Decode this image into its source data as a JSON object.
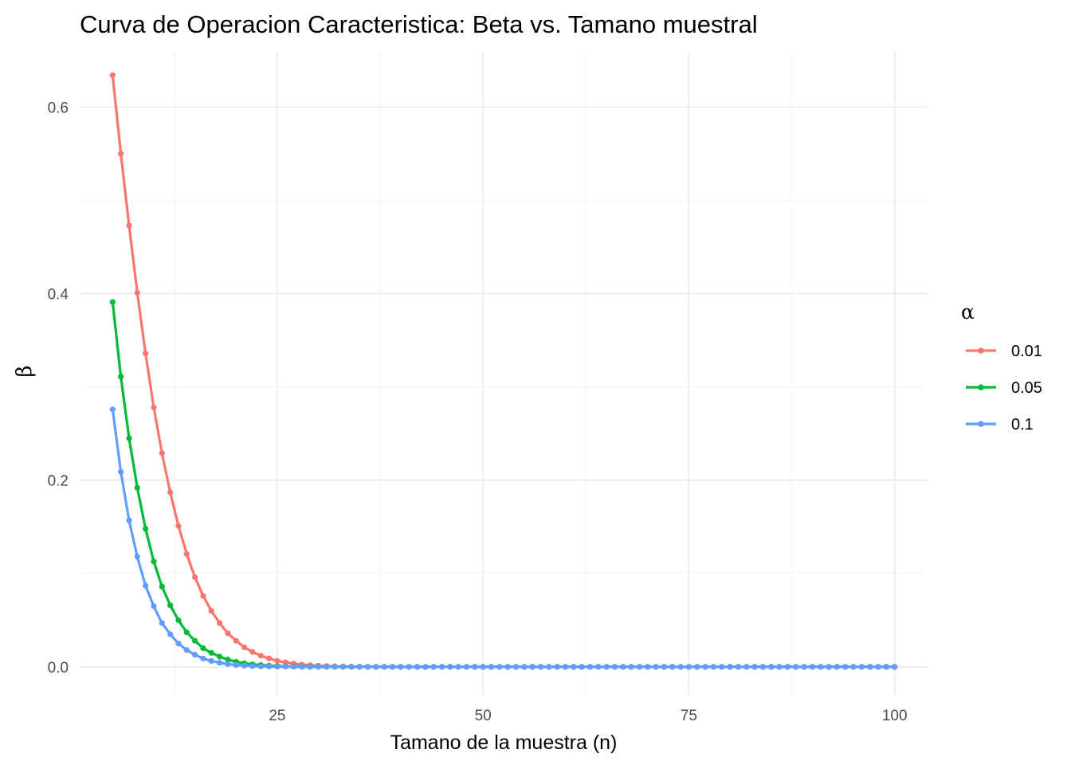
{
  "chart_data": {
    "type": "line",
    "title": "Curva de Operacion Caracteristica: Beta vs. Tamano muestral",
    "xlabel": "Tamano de la muestra (n)",
    "ylabel": "β",
    "xlim": [
      1,
      104
    ],
    "ylim": [
      -0.03,
      0.66
    ],
    "x_ticks": [
      25,
      50,
      75,
      100
    ],
    "x_tick_labels": [
      "25",
      "50",
      "75",
      "100"
    ],
    "y_ticks": [
      0,
      0.2,
      0.4,
      0.6
    ],
    "y_tick_labels": [
      "0.0",
      "0.2",
      "0.4",
      "0.6"
    ],
    "x_minor_ticks": [
      12.5,
      37.5,
      62.5,
      87.5
    ],
    "y_minor_ticks": [
      0.1,
      0.3,
      0.5
    ],
    "grid": true,
    "points": true,
    "legend": {
      "title": "α",
      "placement": "right"
    },
    "x": {
      "start": 5,
      "end": 100,
      "step": 1
    },
    "series": [
      {
        "name": "0.01",
        "color": "#F8766D",
        "values_head": [
          0.634,
          0.55,
          0.473,
          0.401,
          0.336,
          0.278,
          0.229,
          0.187,
          0.151,
          0.121,
          0.096,
          0.076,
          0.06,
          0.047,
          0.036,
          0.028,
          0.021,
          0.016,
          0.012,
          0.009,
          0.0065,
          0.0048,
          0.0035,
          0.0025,
          0.0018,
          0.0013,
          0.0009,
          0.00065,
          0.00045,
          0.0003,
          0.0002,
          0.00014,
          0.0001,
          7e-05,
          5e-05,
          3e-05,
          2e-05,
          1e-05,
          1e-05
        ],
        "tail_value": 0
      },
      {
        "name": "0.05",
        "color": "#00BA38",
        "values_head": [
          0.391,
          0.311,
          0.245,
          0.192,
          0.148,
          0.113,
          0.086,
          0.066,
          0.05,
          0.037,
          0.028,
          0.02,
          0.015,
          0.011,
          0.0078,
          0.0055,
          0.0039,
          0.0027,
          0.0019,
          0.0013,
          0.0009,
          0.0006,
          0.0004,
          0.00027,
          0.00018,
          0.00012,
          8e-05,
          5e-05,
          3e-05,
          2e-05,
          1e-05
        ],
        "tail_value": 0
      },
      {
        "name": "0.1",
        "color": "#619CFF",
        "values_head": [
          0.276,
          0.209,
          0.157,
          0.118,
          0.087,
          0.065,
          0.047,
          0.035,
          0.025,
          0.018,
          0.013,
          0.009,
          0.0063,
          0.0044,
          0.003,
          0.002,
          0.0014,
          0.0009,
          0.0006,
          0.0004,
          0.00027,
          0.00018,
          0.00012,
          8e-05,
          5e-05,
          3e-05,
          2e-05,
          1e-05
        ],
        "tail_value": 0
      }
    ]
  }
}
